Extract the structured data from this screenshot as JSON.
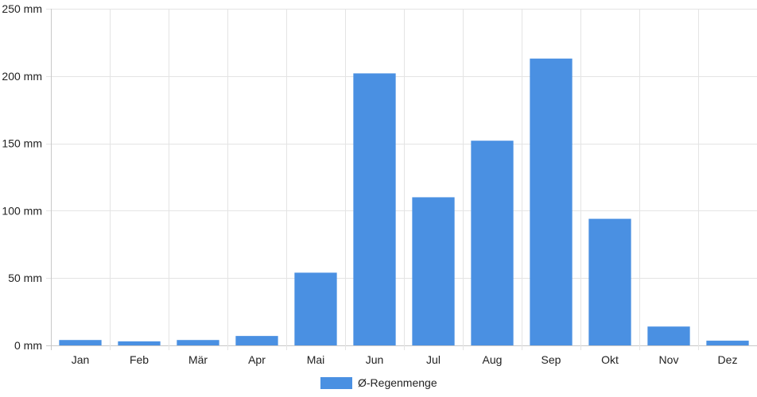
{
  "chart_data": {
    "type": "bar",
    "categories": [
      "Jan",
      "Feb",
      "Mär",
      "Apr",
      "Mai",
      "Jun",
      "Jul",
      "Aug",
      "Sep",
      "Okt",
      "Nov",
      "Dez"
    ],
    "series": [
      {
        "name": "Ø-Regenmenge",
        "values": [
          4,
          3,
          4,
          7,
          54,
          202,
          110,
          152,
          213,
          94,
          14,
          3.5
        ],
        "color": "#4a90e2"
      }
    ],
    "ylim": [
      0,
      250
    ],
    "yticks": [
      0,
      50,
      100,
      150,
      200,
      250
    ],
    "ytick_labels": [
      "0 mm",
      "50 mm",
      "100 mm",
      "150 mm",
      "200 mm",
      "250 mm"
    ],
    "grid": true,
    "legend_position": "bottom"
  }
}
